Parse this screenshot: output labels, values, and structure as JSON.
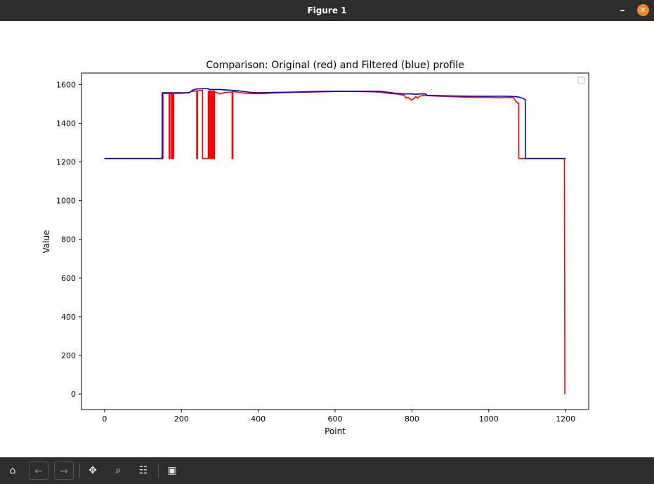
{
  "window": {
    "title": "Figure 1",
    "minimize_glyph": "–",
    "close_glyph": "✕"
  },
  "toolbar": {
    "icons": [
      "home-icon",
      "back-arrow-icon",
      "forward-arrow-icon",
      "pan-icon",
      "zoom-icon",
      "configure-subplots-icon",
      "save-icon"
    ],
    "glyphs": {
      "home": "⌂",
      "back": "←",
      "forward": "→",
      "pan": "✥",
      "zoom": "⌕",
      "configure": "☷",
      "save": "▣"
    }
  },
  "colors": {
    "original_series": "#ff0000",
    "filtered_series": "#0000cc",
    "window_chrome": "#2d2d2d",
    "close_button": "#f08a28"
  },
  "chart_data": {
    "type": "line",
    "title": "Comparison: Original (red) and Filtered (blue) profile",
    "xlabel": "Point",
    "ylabel": "Value",
    "xlim": [
      -60,
      1260
    ],
    "ylim": [
      -80,
      1660
    ],
    "xticks": [
      0,
      200,
      400,
      600,
      800,
      1000,
      1200
    ],
    "yticks": [
      0,
      200,
      400,
      600,
      800,
      1000,
      1200,
      1400,
      1600
    ],
    "grid": false,
    "legend": "upper right (empty)",
    "series": [
      {
        "color": "#ff0000",
        "points": [
          [
            0,
            1218
          ],
          [
            150,
            1218
          ],
          [
            152,
            1218
          ],
          [
            152,
            1555
          ],
          [
            168,
            1555
          ],
          [
            168,
            1218
          ],
          [
            170,
            1218
          ],
          [
            170,
            1555
          ],
          [
            174,
            1555
          ],
          [
            174,
            1218
          ],
          [
            176,
            1218
          ],
          [
            176,
            1555
          ],
          [
            178,
            1555
          ],
          [
            178,
            1218
          ],
          [
            180,
            1218
          ],
          [
            180,
            1555
          ],
          [
            200,
            1555
          ],
          [
            215,
            1558
          ],
          [
            230,
            1566
          ],
          [
            240,
            1568
          ],
          [
            240,
            1218
          ],
          [
            242,
            1218
          ],
          [
            242,
            1568
          ],
          [
            250,
            1570
          ],
          [
            255,
            1572
          ],
          [
            255,
            1218
          ],
          [
            270,
            1218
          ],
          [
            270,
            1565
          ],
          [
            272,
            1565
          ],
          [
            272,
            1218
          ],
          [
            274,
            1218
          ],
          [
            274,
            1568
          ],
          [
            276,
            1568
          ],
          [
            276,
            1218
          ],
          [
            278,
            1218
          ],
          [
            278,
            1565
          ],
          [
            280,
            1565
          ],
          [
            280,
            1218
          ],
          [
            282,
            1218
          ],
          [
            282,
            1568
          ],
          [
            284,
            1568
          ],
          [
            284,
            1218
          ],
          [
            286,
            1218
          ],
          [
            286,
            1565
          ],
          [
            290,
            1560
          ],
          [
            300,
            1552
          ],
          [
            310,
            1558
          ],
          [
            320,
            1560
          ],
          [
            332,
            1562
          ],
          [
            332,
            1218
          ],
          [
            334,
            1218
          ],
          [
            334,
            1565
          ],
          [
            350,
            1560
          ],
          [
            370,
            1555
          ],
          [
            400,
            1553
          ],
          [
            450,
            1558
          ],
          [
            500,
            1560
          ],
          [
            550,
            1562
          ],
          [
            600,
            1565
          ],
          [
            650,
            1565
          ],
          [
            700,
            1563
          ],
          [
            720,
            1560
          ],
          [
            740,
            1555
          ],
          [
            760,
            1552
          ],
          [
            780,
            1545
          ],
          [
            785,
            1530
          ],
          [
            790,
            1535
          ],
          [
            795,
            1525
          ],
          [
            800,
            1520
          ],
          [
            805,
            1528
          ],
          [
            810,
            1538
          ],
          [
            815,
            1530
          ],
          [
            820,
            1540
          ],
          [
            830,
            1545
          ],
          [
            850,
            1542
          ],
          [
            900,
            1538
          ],
          [
            950,
            1535
          ],
          [
            1000,
            1535
          ],
          [
            1030,
            1532
          ],
          [
            1050,
            1535
          ],
          [
            1065,
            1532
          ],
          [
            1070,
            1515
          ],
          [
            1075,
            1505
          ],
          [
            1078,
            1505
          ],
          [
            1078,
            1218
          ],
          [
            1100,
            1218
          ],
          [
            1150,
            1218
          ],
          [
            1195,
            1218
          ],
          [
            1196,
            1218
          ],
          [
            1197,
            1218
          ],
          [
            1198,
            0
          ]
        ]
      },
      {
        "color": "#0000cc",
        "points": [
          [
            0,
            1218
          ],
          [
            150,
            1218
          ],
          [
            150,
            1558
          ],
          [
            200,
            1558
          ],
          [
            220,
            1558
          ],
          [
            230,
            1572
          ],
          [
            240,
            1578
          ],
          [
            270,
            1580
          ],
          [
            272,
            1575
          ],
          [
            300,
            1575
          ],
          [
            320,
            1572
          ],
          [
            350,
            1568
          ],
          [
            380,
            1560
          ],
          [
            400,
            1558
          ],
          [
            450,
            1560
          ],
          [
            500,
            1562
          ],
          [
            550,
            1565
          ],
          [
            600,
            1566
          ],
          [
            650,
            1566
          ],
          [
            700,
            1566
          ],
          [
            720,
            1565
          ],
          [
            740,
            1560
          ],
          [
            760,
            1555
          ],
          [
            780,
            1552
          ],
          [
            800,
            1552
          ],
          [
            810,
            1550
          ],
          [
            820,
            1552
          ],
          [
            835,
            1552
          ],
          [
            840,
            1545
          ],
          [
            900,
            1542
          ],
          [
            950,
            1540
          ],
          [
            1000,
            1540
          ],
          [
            1050,
            1540
          ],
          [
            1070,
            1538
          ],
          [
            1080,
            1535
          ],
          [
            1090,
            1528
          ],
          [
            1095,
            1522
          ],
          [
            1095,
            1218
          ],
          [
            1100,
            1218
          ],
          [
            1150,
            1218
          ],
          [
            1200,
            1218
          ]
        ]
      }
    ]
  }
}
